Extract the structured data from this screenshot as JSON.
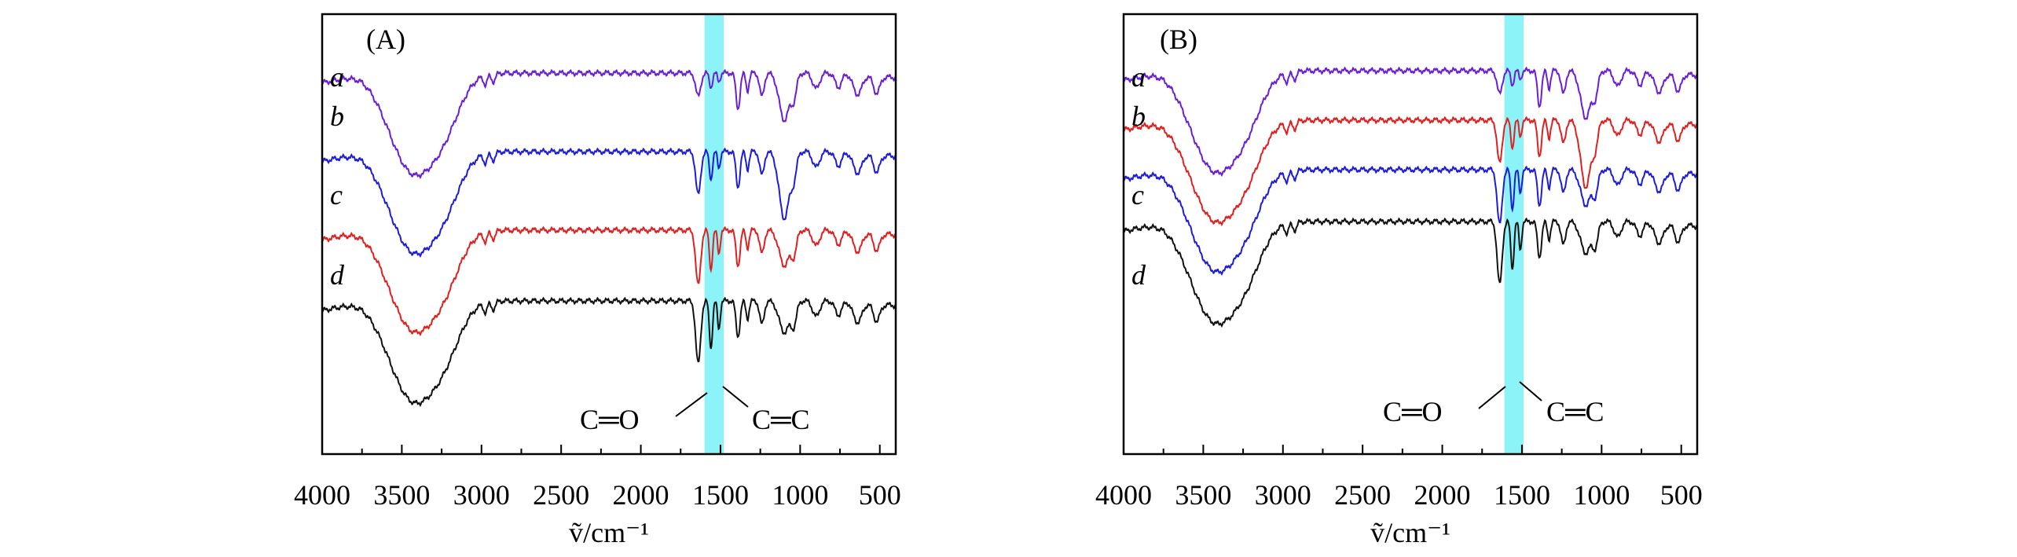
{
  "chart_data": [
    {
      "type": "line",
      "panel_label": "(A)",
      "xlabel": "ṽ/cm⁻¹",
      "xlim": [
        4000,
        400
      ],
      "x_ticks": [
        4000,
        3500,
        3000,
        2500,
        2000,
        1500,
        1000,
        500
      ],
      "x_tick_labels": [
        "4000",
        "3500",
        "3000",
        "2500",
        "2000",
        "1500",
        "1000",
        "500"
      ],
      "ylabel": "",
      "y_ticks_visible": false,
      "grid": false,
      "legend": "none",
      "highlight_band": {
        "x_range": [
          1600,
          1480
        ],
        "color": "#66f0f5"
      },
      "annotations": [
        {
          "text": "C═O",
          "target_x": 1620
        },
        {
          "text": "C═C",
          "target_x": 1530
        }
      ],
      "series": [
        {
          "name": "a",
          "color": "#6a1ed6",
          "offset": 0
        },
        {
          "name": "b",
          "color": "#1c1cd9",
          "offset": 1
        },
        {
          "name": "c",
          "color": "#e02020",
          "offset": 2
        },
        {
          "name": "d",
          "color": "#111111",
          "offset": 3
        }
      ]
    },
    {
      "type": "line",
      "panel_label": "(B)",
      "xlabel": "ṽ/cm⁻¹",
      "xlim": [
        4000,
        400
      ],
      "x_ticks": [
        4000,
        3500,
        3000,
        2500,
        2000,
        1500,
        1000,
        500
      ],
      "x_tick_labels": [
        "4000",
        "3500",
        "3000",
        "2500",
        "2000",
        "1500",
        "1000",
        "500"
      ],
      "ylabel": "",
      "y_ticks_visible": false,
      "grid": false,
      "legend": "none",
      "highlight_band": {
        "x_range": [
          1610,
          1490
        ],
        "color": "#66f0f5"
      },
      "annotations": [
        {
          "text": "C═O",
          "target_x": 1620
        },
        {
          "text": "C═C",
          "target_x": 1530
        }
      ],
      "series": [
        {
          "name": "a",
          "color": "#6a1ed6",
          "offset": 0
        },
        {
          "name": "b",
          "color": "#e02020",
          "offset": 1
        },
        {
          "name": "c",
          "color": "#1c1cd9",
          "offset": 2
        },
        {
          "name": "d",
          "color": "#111111",
          "offset": 3
        }
      ]
    }
  ]
}
